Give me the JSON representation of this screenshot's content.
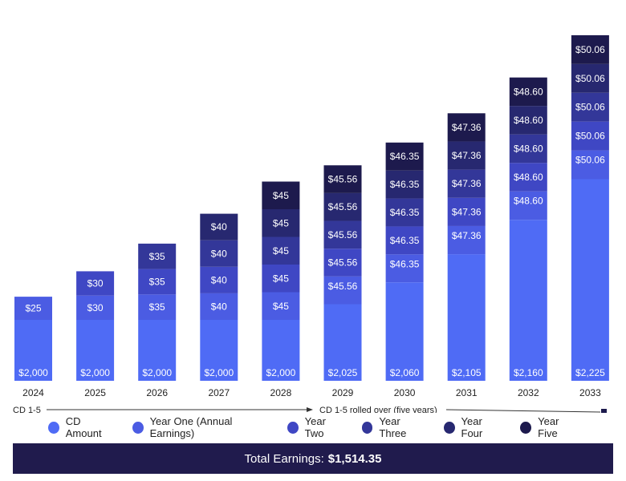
{
  "chart_data": {
    "type": "bar",
    "stacked": true,
    "categories": [
      "2024",
      "2025",
      "2026",
      "2027",
      "2028",
      "2029",
      "2030",
      "2031",
      "2032",
      "2033"
    ],
    "series": [
      {
        "name": "CD Amount",
        "color": "#4f6bf5",
        "values": [
          2000,
          2000,
          2000,
          2000,
          2000,
          2025,
          2060,
          2105,
          2160,
          2225
        ],
        "labels": [
          "$2,000",
          "$2,000",
          "$2,000",
          "$2,000",
          "$2,000",
          "$2,025",
          "$2,060",
          "$2,105",
          "$2,160",
          "$2,225"
        ]
      },
      {
        "name": "Year One (Annual Earnings)",
        "color": "#4b5ce3",
        "values": [
          25,
          30,
          35,
          40,
          45,
          45.56,
          46.35,
          47.36,
          48.6,
          50.06
        ],
        "labels": [
          "$25",
          "$30",
          "$35",
          "$40",
          "$45",
          "$45.56",
          "$46.35",
          "$47.36",
          "$48.60",
          "$50.06"
        ]
      },
      {
        "name": "Year Two",
        "color": "#3f47c4",
        "values": [
          null,
          30,
          35,
          40,
          45,
          45.56,
          46.35,
          47.36,
          48.6,
          50.06
        ],
        "labels": [
          "",
          "$30",
          "$35",
          "$40",
          "$45",
          "$45.56",
          "$46.35",
          "$47.36",
          "$48.60",
          "$50.06"
        ]
      },
      {
        "name": "Year Three",
        "color": "#333799",
        "values": [
          null,
          null,
          35,
          40,
          45,
          45.56,
          46.35,
          47.36,
          48.6,
          50.06
        ],
        "labels": [
          "",
          "",
          "$35",
          "$40",
          "$45",
          "$45.56",
          "$46.35",
          "$47.36",
          "$48.60",
          "$50.06"
        ]
      },
      {
        "name": "Year Four",
        "color": "#272870",
        "values": [
          null,
          null,
          null,
          40,
          45,
          45.56,
          46.35,
          47.36,
          48.6,
          50.06
        ],
        "labels": [
          "",
          "",
          "",
          "$40",
          "$45",
          "$45.56",
          "$46.35",
          "$47.36",
          "$48.60",
          "$50.06"
        ]
      },
      {
        "name": "Year Five",
        "color": "#1d1a4d",
        "values": [
          null,
          null,
          null,
          null,
          45,
          45.56,
          46.35,
          47.36,
          48.6,
          50.06
        ],
        "labels": [
          "",
          "",
          "",
          "",
          "$45",
          "$45.56",
          "$46.35",
          "$47.36",
          "$48.60",
          "$50.06"
        ]
      }
    ],
    "annotations": {
      "left": "CD 1-5",
      "middle": "CD 1-5 rolled over (five years)"
    },
    "legend_position": "bottom",
    "grid": false
  },
  "footer": {
    "total_label": "Total Earnings:",
    "total_value": "$1,514.35"
  }
}
